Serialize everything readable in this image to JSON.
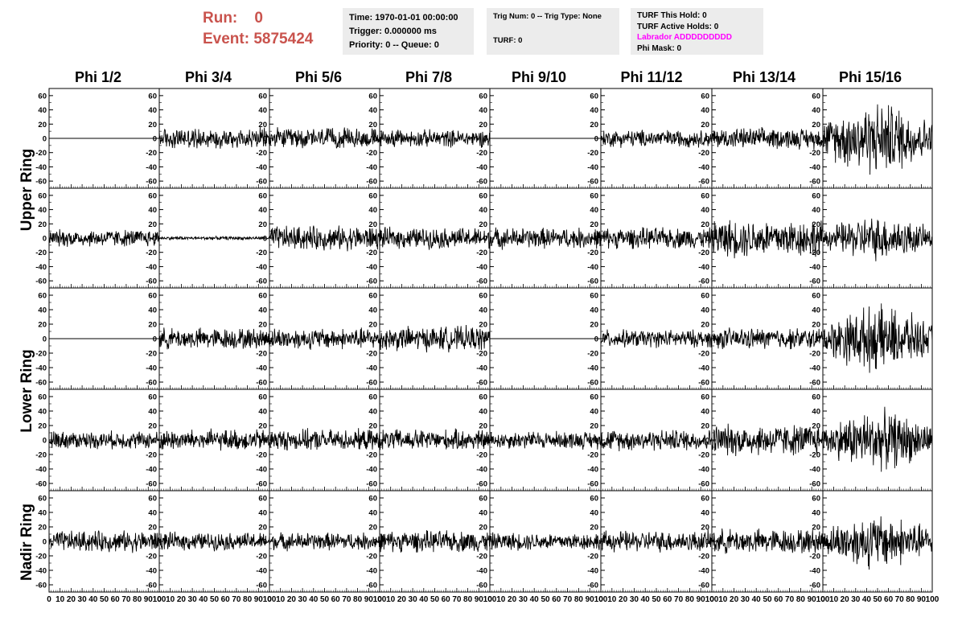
{
  "header": {
    "run_label": "Run:",
    "run_value": "0",
    "event_label": "Event:",
    "event_value": "5875424"
  },
  "info_boxes": [
    {
      "lines": [
        "Time: 1970-01-01 00:00:00",
        "Trigger: 0.000000 ms",
        "Priority: 0 -- Queue: 0"
      ]
    },
    {
      "lines": [
        "Trig Num: 0 -- Trig Type: None",
        "",
        "TURF: 0"
      ]
    },
    {
      "lines": [
        "TURF This Hold: 0",
        "TURF Active Holds: 0",
        "Labrador ADDDDDDDDD",
        "Phi Mask: 0"
      ]
    }
  ],
  "colors": {
    "run_text": "#c9534d",
    "labrador_text": "#ff00ff",
    "info_bg": "#ececec",
    "trace": "#000000"
  },
  "chart_data": {
    "type": "line",
    "title": "",
    "columns": [
      "Phi 1/2",
      "Phi 3/4",
      "Phi 5/6",
      "Phi 7/8",
      "Phi 9/10",
      "Phi 11/12",
      "Phi 13/14",
      "Phi 15/16"
    ],
    "row_groups": [
      "Upper Ring",
      "Lower Ring",
      "Nadir Ring"
    ],
    "panel_rows": 5,
    "x_range": [
      0,
      100
    ],
    "y_range": [
      -70,
      70
    ],
    "y_ticks": [
      -60,
      -40,
      -20,
      0,
      20,
      40,
      60
    ],
    "x_tick_labels": [
      "0",
      "10",
      "20",
      "30",
      "40",
      "50",
      "60",
      "70",
      "80",
      "90",
      "100"
    ],
    "grid": false,
    "series_amplitude": [
      [
        0,
        12,
        12,
        10,
        0,
        10,
        12,
        30
      ],
      [
        10,
        2,
        14,
        12,
        12,
        12,
        22,
        18
      ],
      [
        0,
        12,
        12,
        14,
        0,
        10,
        12,
        26
      ],
      [
        10,
        12,
        12,
        12,
        10,
        12,
        18,
        24
      ],
      [
        12,
        10,
        10,
        12,
        10,
        12,
        14,
        22
      ]
    ],
    "series_note_flat": "amplitude 0 = flat trace at 0"
  }
}
